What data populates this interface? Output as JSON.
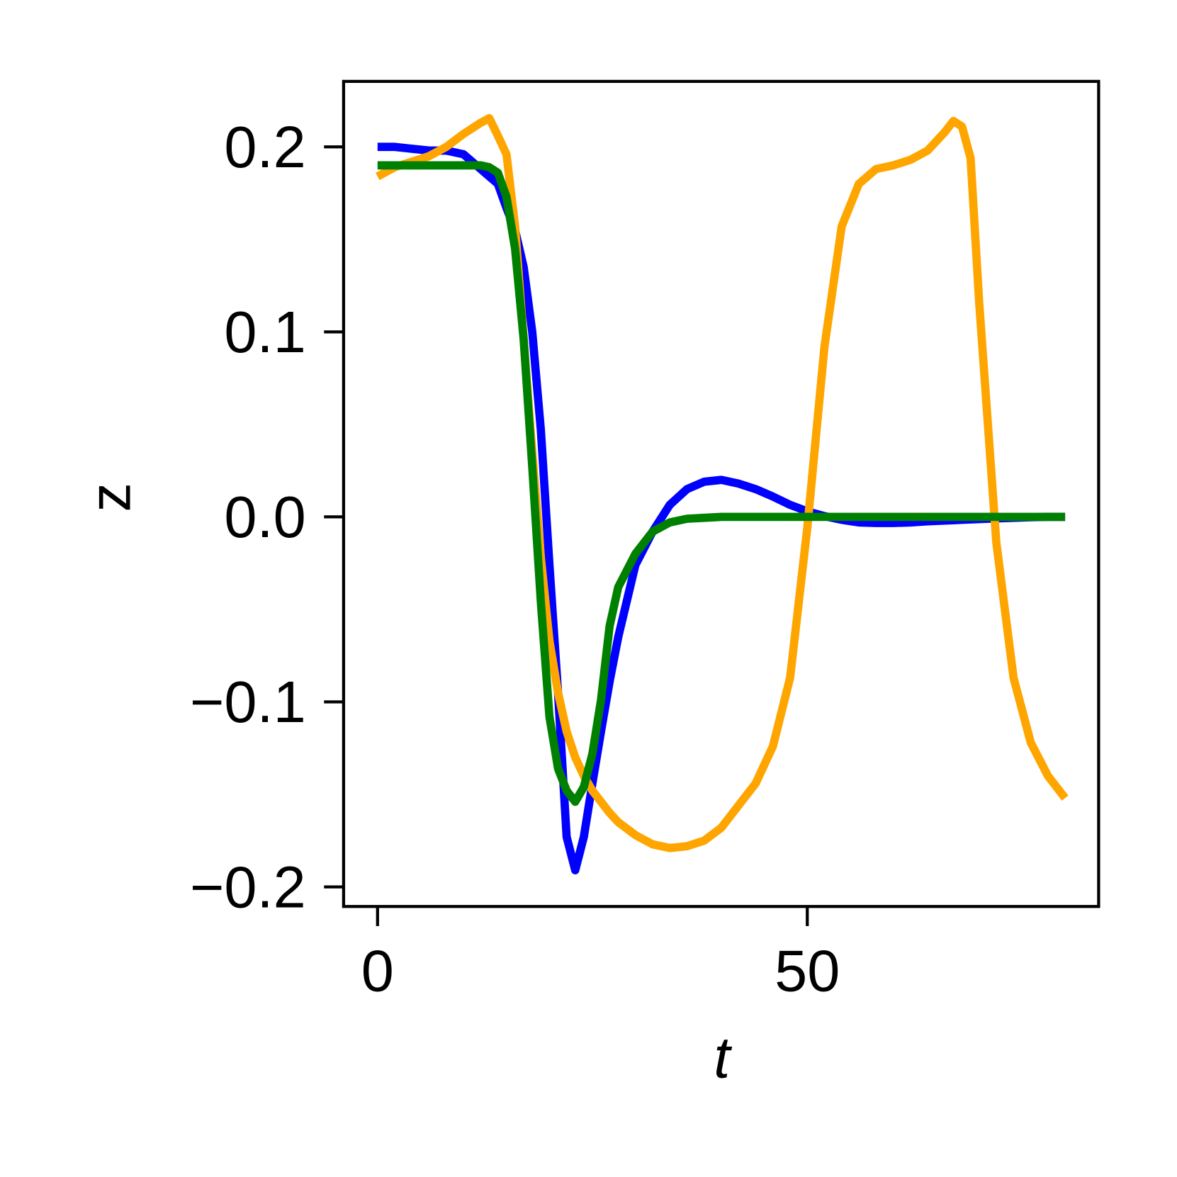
{
  "chart_data": {
    "type": "line",
    "xlabel": "t",
    "ylabel": "z",
    "xlim": [
      -3.95,
      83.9
    ],
    "ylim": [
      -0.2106,
      0.2354
    ],
    "xticks": [
      0,
      50
    ],
    "yticks": [
      {
        "value": -0.2,
        "label": "−0.2"
      },
      {
        "value": -0.1,
        "label": "−0.1"
      },
      {
        "value": 0,
        "label": "0.0"
      },
      0.1,
      0.2
    ],
    "x": [
      0,
      2,
      4,
      6,
      8,
      10,
      12,
      13,
      14,
      15,
      16,
      17,
      18,
      19,
      20,
      21,
      22,
      23,
      24,
      25,
      26,
      27,
      28,
      30,
      32,
      34,
      36,
      38,
      40,
      42,
      44,
      46,
      48,
      50,
      52,
      54,
      56,
      58,
      60,
      62,
      64,
      66,
      67,
      68,
      69,
      70,
      71,
      72,
      74,
      76,
      78,
      80
    ],
    "series": [
      {
        "color": "#0000ff",
        "values": [
          0.2,
          0.2,
          0.199,
          0.198,
          0.198,
          0.196,
          0.188,
          0.184,
          0.18,
          0.167,
          0.155,
          0.135,
          0.1,
          0.047,
          -0.026,
          -0.095,
          -0.173,
          -0.191,
          -0.173,
          -0.144,
          -0.116,
          -0.089,
          -0.065,
          -0.026,
          -0.008,
          0.0065,
          0.015,
          0.019,
          0.02,
          0.018,
          0.015,
          0.011,
          0.0065,
          0.003,
          0.0004,
          -0.0016,
          -0.003,
          -0.0033,
          -0.0033,
          -0.003,
          -0.0024,
          -0.002,
          -0.0018,
          -0.0016,
          -0.0014,
          -0.0012,
          -0.001,
          -0.0008,
          -0.0005,
          -0.0002,
          0,
          0
        ]
      },
      {
        "color": "#ffa500",
        "values": [
          0.184,
          0.189,
          0.192,
          0.195,
          0.2,
          0.207,
          0.213,
          0.2155,
          0.206,
          0.196,
          0.157,
          0.096,
          0.035,
          -0.022,
          -0.067,
          -0.095,
          -0.116,
          -0.13,
          -0.14,
          -0.148,
          -0.154,
          -0.16,
          -0.165,
          -0.172,
          -0.177,
          -0.179,
          -0.178,
          -0.175,
          -0.168,
          -0.156,
          -0.144,
          -0.124,
          -0.087,
          -0.006,
          0.092,
          0.157,
          0.18,
          0.188,
          0.19,
          0.193,
          0.198,
          0.208,
          0.214,
          0.211,
          0.194,
          0.116,
          0.051,
          -0.014,
          -0.087,
          -0.122,
          -0.14,
          -0.152
        ]
      },
      {
        "color": "#008000",
        "values": [
          0.19,
          0.19,
          0.19,
          0.19,
          0.19,
          0.19,
          0.19,
          0.189,
          0.186,
          0.173,
          0.145,
          0.096,
          0.027,
          -0.046,
          -0.108,
          -0.136,
          -0.148,
          -0.154,
          -0.146,
          -0.128,
          -0.099,
          -0.059,
          -0.038,
          -0.02,
          -0.008,
          -0.003,
          -0.001,
          -0.0005,
          0,
          0,
          0,
          0,
          0,
          0,
          0,
          0,
          0,
          0,
          0,
          0,
          0,
          0,
          0,
          0,
          0,
          0,
          0,
          0,
          0,
          0,
          0,
          0
        ]
      }
    ]
  }
}
